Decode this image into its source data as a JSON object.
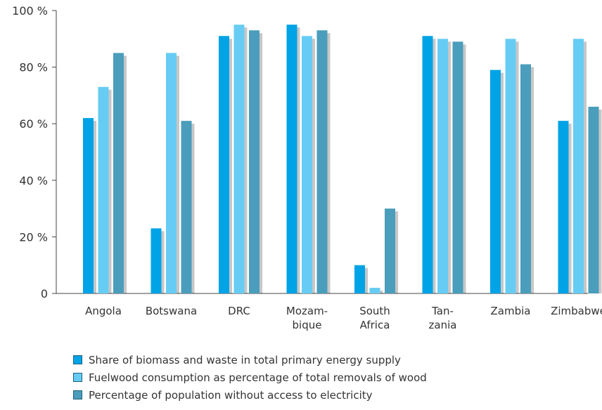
{
  "chart_data": {
    "type": "bar",
    "categories": [
      [
        "Angola"
      ],
      [
        "Botswana"
      ],
      [
        "DRC"
      ],
      [
        "Mozam-",
        "bique"
      ],
      [
        "South",
        "Africa"
      ],
      [
        "Tan-",
        "zania"
      ],
      [
        "Zambia"
      ],
      [
        "Zimbabwe"
      ]
    ],
    "series": [
      {
        "name": "Share of biomass and waste in total primary energy supply",
        "color": "#00a3e6",
        "values": [
          62,
          23,
          91,
          95,
          10,
          91,
          79,
          61
        ]
      },
      {
        "name": "Fuelwood consumption as percentage of total removals of wood",
        "color": "#66ccf4",
        "values": [
          73,
          85,
          95,
          91,
          2,
          90,
          90,
          90
        ]
      },
      {
        "name": "Percentage of population without access to electricity",
        "color": "#4a9dbb",
        "values": [
          85,
          61,
          93,
          93,
          30,
          89,
          81,
          66
        ]
      }
    ],
    "yticks": [
      "0",
      "20 %",
      "40 %",
      "60 %",
      "80 %",
      "100 %"
    ],
    "ytick_values": [
      0,
      20,
      40,
      60,
      80,
      100
    ],
    "ylim": [
      0,
      100
    ],
    "legend_position": "bottom-left"
  }
}
